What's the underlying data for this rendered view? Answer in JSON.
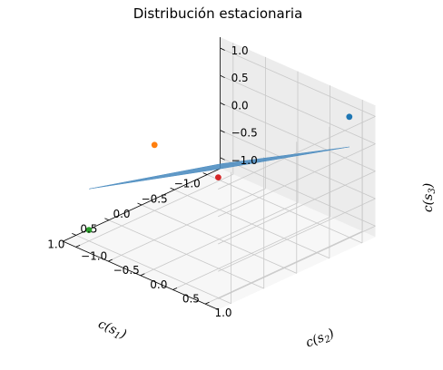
{
  "chart_data": {
    "type": "scatter",
    "projection": "3d",
    "title": "Distribución estacionaria",
    "axes": {
      "x": {
        "label_base": "c(s",
        "label_sub": "1",
        "label_end": ")",
        "ticks": [
          -1.0,
          -0.5,
          0.0,
          0.5,
          1.0
        ],
        "tick_labels": [
          "−1.0",
          "−0.5",
          "0.0",
          "0.5",
          "1.0"
        ],
        "range": [
          -1.2,
          1.2
        ]
      },
      "y": {
        "label_base": "c(s",
        "label_sub": "2",
        "label_end": ")",
        "ticks": [
          -1.0,
          -0.5,
          0.0,
          0.5,
          1.0
        ],
        "tick_labels": [
          "−1.0",
          "−0.5",
          "0.0",
          "0.5",
          "1.0"
        ],
        "range": [
          -1.2,
          1.2
        ]
      },
      "z": {
        "label_base": "c(s",
        "label_sub": "3",
        "label_end": ")",
        "ticks": [
          -1.0,
          -0.5,
          0.0,
          0.5,
          1.0
        ],
        "tick_labels": [
          "−1.0",
          "−0.5",
          "0.0",
          "0.5",
          "1.0"
        ],
        "range": [
          -1.2,
          1.2
        ]
      }
    },
    "grid": true,
    "surface": {
      "color": "#4a8bbf",
      "opacity": 0.88,
      "corners": [
        {
          "x": -1.0,
          "y": -1.0,
          "z": -0.9
        },
        {
          "x": 1.0,
          "y": -1.0,
          "z": -0.25
        },
        {
          "x": 1.0,
          "y": 1.0,
          "z": 1.15
        },
        {
          "x": -1.0,
          "y": 1.0,
          "z": 0.45
        }
      ]
    },
    "points": [
      {
        "x": -1.0,
        "y": 1.0,
        "z": 1.0,
        "color": "#1f77b4"
      },
      {
        "x": 1.0,
        "y": -1.0,
        "z": -1.0,
        "color": "#2ca02c"
      },
      {
        "x": 0.0,
        "y": -1.0,
        "z": 0.0,
        "color": "#ff7f0e"
      },
      {
        "x": 1.0,
        "y": 1.0,
        "z": 1.0,
        "color": "#d62728"
      }
    ]
  }
}
